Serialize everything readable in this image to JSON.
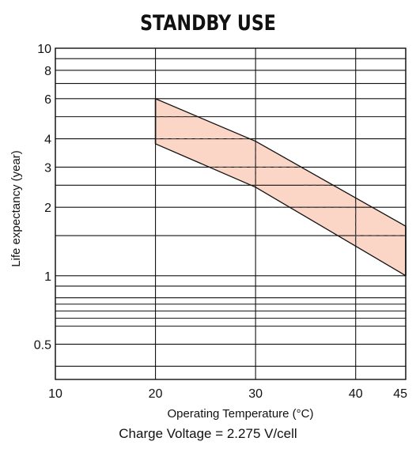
{
  "chart_data": {
    "type": "area",
    "title": "STANDBY USE",
    "xlabel": "Operating Temperature (°C)",
    "ylabel": "Life expectancy (year)",
    "caption": "Charge Voltage = 2.275 V/cell",
    "x_scale": "linear",
    "y_scale": "log",
    "xlim": [
      10,
      45
    ],
    "ylim": [
      0.35,
      10
    ],
    "x_ticks": [
      10,
      20,
      30,
      40,
      45
    ],
    "x_tick_labels": [
      "10",
      "20",
      "30",
      "40",
      "45"
    ],
    "y_tick_values": [
      0.5,
      1,
      2,
      3,
      4,
      6,
      8,
      10
    ],
    "y_tick_labels": [
      "0.5",
      "1",
      "2",
      "3",
      "4",
      "6",
      "8",
      "10"
    ],
    "y_gridlines": [
      0.4,
      0.5,
      0.6,
      0.65,
      0.7,
      0.75,
      0.8,
      0.9,
      1,
      1.5,
      2,
      2.5,
      3,
      4,
      5,
      6,
      7,
      8,
      9,
      10
    ],
    "x_gridlines": [
      10,
      20,
      30,
      40,
      45
    ],
    "grid": true,
    "band": {
      "upper": [
        [
          20,
          6
        ],
        [
          30,
          3.9
        ],
        [
          45,
          1.65
        ]
      ],
      "lower": [
        [
          20,
          3.8
        ],
        [
          30,
          2.45
        ],
        [
          45,
          1.0
        ]
      ],
      "fill_color": "#fbd6c6"
    },
    "reference_lines": [
      {
        "y": 5,
        "x_range": [
          20,
          24.5
        ]
      },
      {
        "y": 4,
        "x_range": [
          20,
          29.5
        ]
      },
      {
        "y": 3,
        "x_range": [
          25.5,
          34.8
        ]
      },
      {
        "y": 2.5,
        "x_range": [
          34.8,
          37.3
        ]
      },
      {
        "y": 2,
        "x_range": [
          31.5,
          40
        ]
      },
      {
        "y": 1.5,
        "x_range": [
          40,
          45
        ]
      },
      {
        "x": 30,
        "y_range": [
          2.45,
          3.9
        ]
      },
      {
        "x": 40,
        "y_range": [
          1.35,
          2.1
        ]
      }
    ]
  }
}
